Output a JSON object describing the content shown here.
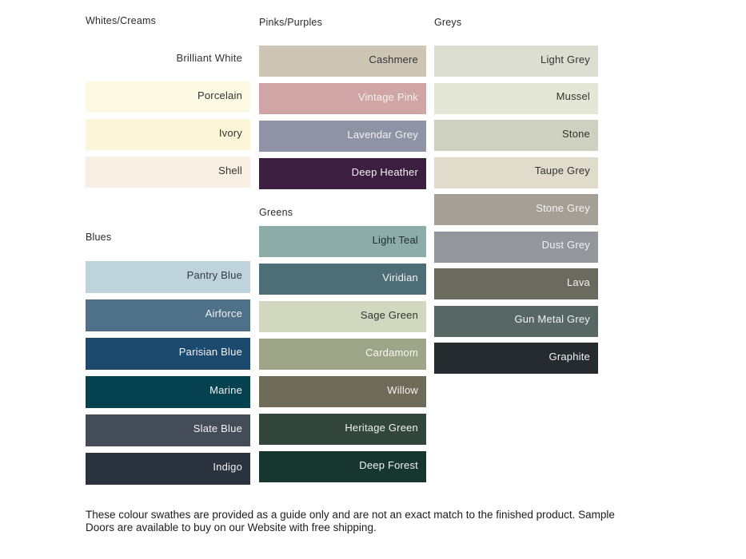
{
  "palette": {
    "sections": [
      {
        "title": "Whites/Creams",
        "swatches": [
          {
            "name": "Brilliant White",
            "bg": "#FFFFFF",
            "fg": "#333333"
          },
          {
            "name": "Porcelain",
            "bg": "#FCFAE5",
            "fg": "#333333"
          },
          {
            "name": "Ivory",
            "bg": "#FAF6D7",
            "fg": "#333333"
          },
          {
            "name": "Shell",
            "bg": "#F6EFE2",
            "fg": "#333333"
          }
        ]
      },
      {
        "title": "Blues",
        "swatches": [
          {
            "name": "Pantry Blue",
            "bg": "#BED3DB",
            "fg": "#2F3C44"
          },
          {
            "name": "Airforce",
            "bg": "#4E7089",
            "fg": "#F2F2F2"
          },
          {
            "name": "Parisian Blue",
            "bg": "#1C4A6E",
            "fg": "#F2F2F2"
          },
          {
            "name": "Marine",
            "bg": "#05414F",
            "fg": "#F2F2F2"
          },
          {
            "name": "Slate Blue",
            "bg": "#434C57",
            "fg": "#F2F2F2"
          },
          {
            "name": "Indigo",
            "bg": "#2B333E",
            "fg": "#F2F2F2"
          }
        ]
      },
      {
        "title": "Pinks/Purples",
        "swatches": [
          {
            "name": "Cashmere",
            "bg": "#CEC6B5",
            "fg": "#333333"
          },
          {
            "name": "Vintage Pink",
            "bg": "#CFA5A6",
            "fg": "#F5F0EE"
          },
          {
            "name": "Lavendar Grey",
            "bg": "#8E93A6",
            "fg": "#F2F2F2"
          },
          {
            "name": "Deep Heather",
            "bg": "#3C1F40",
            "fg": "#F2F2F2"
          }
        ]
      },
      {
        "title": "Greens",
        "swatches": [
          {
            "name": "Light Teal",
            "bg": "#8BACA9",
            "fg": "#22302F"
          },
          {
            "name": "Viridian",
            "bg": "#4E6E75",
            "fg": "#F2F2F2"
          },
          {
            "name": "Sage Green",
            "bg": "#D2D8BF",
            "fg": "#333333"
          },
          {
            "name": "Cardamom",
            "bg": "#9FA588",
            "fg": "#F7F7F2"
          },
          {
            "name": "Willow",
            "bg": "#6E6B58",
            "fg": "#F2F2F2"
          },
          {
            "name": "Heritage Green",
            "bg": "#32463B",
            "fg": "#F2F2F2"
          },
          {
            "name": "Deep Forest",
            "bg": "#16362F",
            "fg": "#F2F2F2"
          }
        ]
      },
      {
        "title": "Greys",
        "swatches": [
          {
            "name": "Light Grey",
            "bg": "#DCDED1",
            "fg": "#333333"
          },
          {
            "name": "Mussel",
            "bg": "#E5E7D6",
            "fg": "#333333"
          },
          {
            "name": "Stone",
            "bg": "#CED1BF",
            "fg": "#333333"
          },
          {
            "name": "Taupe Grey",
            "bg": "#E1DBCB",
            "fg": "#333333"
          },
          {
            "name": "Stone Grey",
            "bg": "#A59F95",
            "fg": "#F5F4F2"
          },
          {
            "name": "Dust Grey",
            "bg": "#94969E",
            "fg": "#F2F2F2"
          },
          {
            "name": "Lava",
            "bg": "#6B6A5F",
            "fg": "#F2F2F2"
          },
          {
            "name": "Gun Metal Grey",
            "bg": "#576764",
            "fg": "#F2F2F2"
          },
          {
            "name": "Graphite",
            "bg": "#262B30",
            "fg": "#F2F2F2"
          }
        ]
      }
    ],
    "columns": [
      [
        0,
        1
      ],
      [
        2,
        3
      ],
      [
        4
      ]
    ]
  },
  "footer": {
    "lines": [
      "These colour swathes are provided as a guide only and are not an exact match to the finished product.  Sample",
      "Doors are available to buy on our Website with free shipping."
    ]
  }
}
